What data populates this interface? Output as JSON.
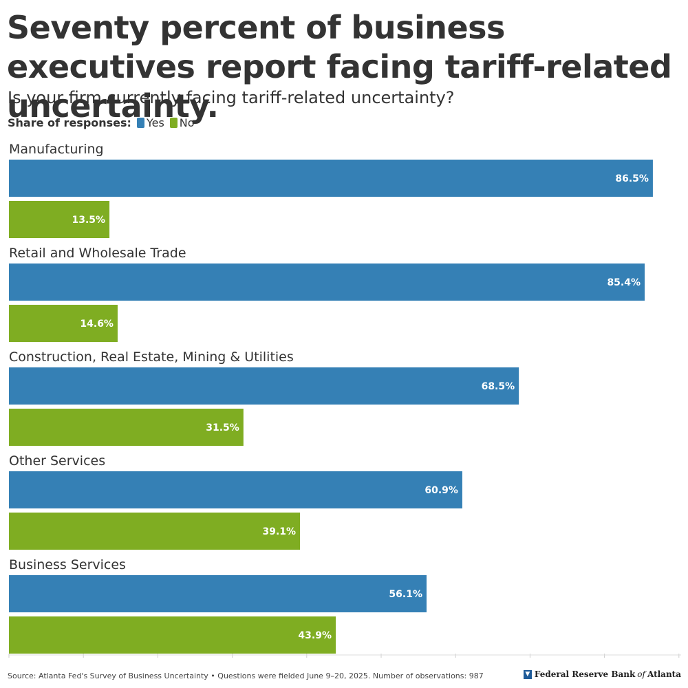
{
  "header": {
    "title": "Seventy percent of business executives report facing tariff-related uncertainty.",
    "subtitle": "Is your firm currently facing tariff-related uncertainty?"
  },
  "legend": {
    "label": "Share of responses:",
    "items": [
      {
        "name": "Yes",
        "color": "#3580b5"
      },
      {
        "name": "No",
        "color": "#7fad22"
      }
    ]
  },
  "chart_data": {
    "type": "bar",
    "orientation": "horizontal",
    "categories": [
      "Manufacturing",
      "Retail and Wholesale Trade",
      "Construction, Real Estate, Mining & Utilities",
      "Other Services",
      "Business Services"
    ],
    "series": [
      {
        "name": "Yes",
        "color": "#3580b5",
        "values": [
          86.5,
          85.4,
          68.5,
          60.9,
          56.1
        ],
        "labels": [
          "86.5%",
          "85.4%",
          "68.5%",
          "60.9%",
          "56.1%"
        ]
      },
      {
        "name": "No",
        "color": "#7fad22",
        "values": [
          13.5,
          14.6,
          31.5,
          39.1,
          43.9
        ],
        "labels": [
          "13.5%",
          "14.6%",
          "31.5%",
          "39.1%",
          "43.9%"
        ]
      }
    ],
    "xlim": [
      0,
      90
    ],
    "unit": "%",
    "title": "Seventy percent of business executives report facing tariff-related uncertainty.",
    "subtitle": "Is your firm currently facing tariff-related uncertainty?",
    "legend_position": "top-left"
  },
  "footer": {
    "source": "Source: Atlanta Fed's Survey of Business Uncertainty • Questions were fielded June 9–20, 2025. Number of observations: 987",
    "logo_text_1": "Federal Reserve Bank",
    "logo_text_2": "of",
    "logo_text_3": "Atlanta"
  }
}
